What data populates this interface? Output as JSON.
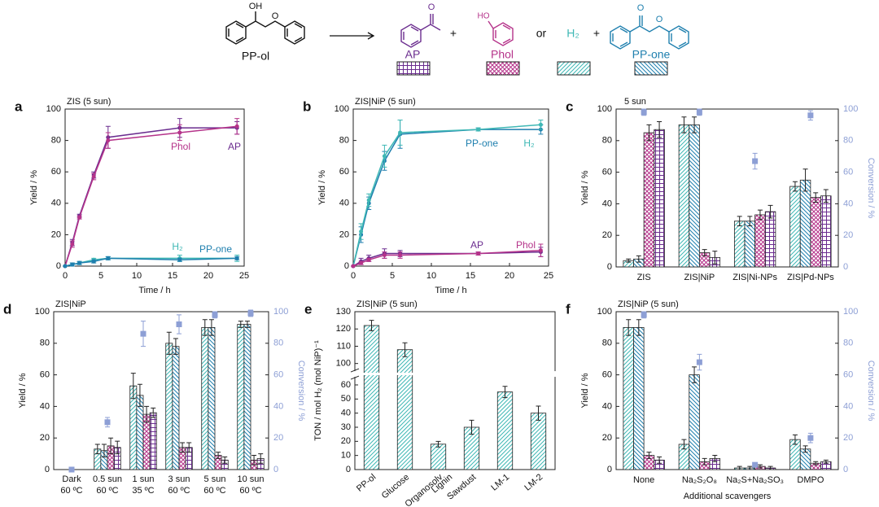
{
  "scheme": {
    "reactant": {
      "label": "PP-ol",
      "atoms": [
        "OH",
        "O"
      ]
    },
    "operators": [
      "+",
      "or",
      "+"
    ],
    "products": [
      {
        "label": "AP",
        "atoms": [
          "O"
        ],
        "color": "#6b2d8f",
        "pattern": "grid"
      },
      {
        "label": "Phol",
        "atoms": [
          "HO"
        ],
        "color": "#b5338a",
        "pattern": "crosshatch"
      },
      {
        "label": "H₂",
        "atoms": [],
        "color": "#3fb8b5",
        "pattern": "diag"
      },
      {
        "label": "PP-one",
        "atoms": [
          "O",
          "O"
        ],
        "color": "#1e7fae",
        "pattern": "antidiag"
      }
    ]
  },
  "chart_data": [
    {
      "type": "line",
      "label": "a",
      "title": "ZIS (5 sun)",
      "xlabel": "Time / h",
      "ylabel": "Yield / %",
      "x": [
        0,
        1,
        2,
        4,
        6,
        16,
        24
      ],
      "xlim": [
        0,
        25
      ],
      "xticks": [
        0,
        5,
        10,
        15,
        20,
        25
      ],
      "ylim": [
        0,
        100
      ],
      "yticks": [
        0,
        20,
        40,
        60,
        80,
        100
      ],
      "series": [
        {
          "name": "AP",
          "color": "#6b2d8f",
          "values": [
            0,
            15,
            32,
            58,
            82,
            88,
            88
          ],
          "errors": [
            0,
            2,
            1,
            2,
            7,
            6,
            4
          ]
        },
        {
          "name": "Phol",
          "color": "#b5338a",
          "values": [
            0,
            14,
            31,
            57,
            80,
            85,
            89
          ],
          "errors": [
            0,
            2,
            1,
            2,
            5,
            5,
            5
          ]
        },
        {
          "name": "H₂",
          "color": "#3fb8b5",
          "values": [
            0,
            1,
            2,
            4,
            5,
            5,
            5
          ],
          "errors": [
            0,
            1,
            1,
            1,
            1,
            2,
            2
          ]
        },
        {
          "name": "PP-one",
          "color": "#1e7fae",
          "values": [
            0,
            1,
            2,
            3,
            5,
            4,
            5
          ],
          "errors": [
            0,
            1,
            1,
            1,
            1,
            1,
            1
          ]
        }
      ]
    },
    {
      "type": "line",
      "label": "b",
      "title": "ZIS|NiP (5 sun)",
      "xlabel": "Time / h",
      "ylabel": "Yield / %",
      "x": [
        0,
        1,
        2,
        4,
        6,
        16,
        24
      ],
      "xlim": [
        0,
        25
      ],
      "xticks": [
        0,
        5,
        10,
        15,
        20,
        25
      ],
      "ylim": [
        0,
        100
      ],
      "yticks": [
        0,
        20,
        40,
        60,
        80,
        100
      ],
      "series": [
        {
          "name": "PP-one",
          "color": "#1e7fae",
          "values": [
            0,
            20,
            40,
            67,
            84,
            87,
            87
          ],
          "errors": [
            0,
            5,
            4,
            6,
            9,
            1,
            3
          ]
        },
        {
          "name": "H₂",
          "color": "#3fb8b5",
          "values": [
            0,
            22,
            42,
            70,
            85,
            87,
            90
          ],
          "errors": [
            0,
            5,
            4,
            7,
            8,
            1,
            3
          ]
        },
        {
          "name": "AP",
          "color": "#6b2d8f",
          "values": [
            0,
            3,
            5,
            8,
            8,
            8,
            9
          ],
          "errors": [
            0,
            2,
            2,
            3,
            2,
            1,
            3
          ]
        },
        {
          "name": "Phol",
          "color": "#b5338a",
          "values": [
            0,
            2,
            4,
            7,
            7,
            8,
            10
          ],
          "errors": [
            0,
            1,
            1,
            2,
            2,
            1,
            4
          ]
        }
      ]
    },
    {
      "type": "bar",
      "label": "c",
      "title": "5 sun",
      "ylabel": "Yield / %",
      "y2label": "Conversion / %",
      "categories": [
        "ZIS",
        "ZIS|NiP",
        "ZIS|Ni-NPs",
        "ZIS|Pd-NPs"
      ],
      "ylim": [
        0,
        100
      ],
      "yticks": [
        0,
        20,
        40,
        60,
        80,
        100
      ],
      "y2lim": [
        0,
        100
      ],
      "y2ticks": [
        0,
        20,
        40,
        60,
        80,
        100
      ],
      "series": [
        {
          "color": "#3fb8b5",
          "pattern": "diag",
          "values": [
            4,
            90,
            29,
            51
          ],
          "errors": [
            1,
            5,
            3,
            3
          ]
        },
        {
          "color": "#1e7fae",
          "pattern": "antidiag",
          "values": [
            5,
            90,
            29,
            55
          ],
          "errors": [
            2,
            5,
            3,
            7
          ]
        },
        {
          "color": "#b5338a",
          "pattern": "crosshatch",
          "values": [
            85,
            9,
            33,
            44
          ],
          "errors": [
            5,
            2,
            3,
            3
          ]
        },
        {
          "color": "#6b2d8f",
          "pattern": "grid",
          "values": [
            87,
            6,
            35,
            45
          ],
          "errors": [
            5,
            4,
            4,
            4
          ]
        },
        {
          "color": "#8d9fd5",
          "axis": "y2",
          "values": [
            98,
            98,
            67,
            96
          ],
          "errors": [
            2,
            2,
            5,
            3
          ]
        }
      ]
    },
    {
      "type": "bar",
      "label": "d",
      "title": "ZIS|NiP",
      "ylabel": "Yield / %",
      "y2label": "Conversion / %",
      "categories": [
        [
          "Dark",
          "60 ºC"
        ],
        [
          "0.5 sun",
          "60 ºC"
        ],
        [
          "1 sun",
          "35 ºC"
        ],
        [
          "3 sun",
          "60 ºC"
        ],
        [
          "5 sun",
          "60 ºC"
        ],
        [
          "10 sun",
          "60 ºC"
        ]
      ],
      "ylim": [
        0,
        100
      ],
      "yticks": [
        0,
        20,
        40,
        60,
        80,
        100
      ],
      "y2lim": [
        0,
        100
      ],
      "y2ticks": [
        0,
        20,
        40,
        60,
        80,
        100
      ],
      "series": [
        {
          "color": "#3fb8b5",
          "pattern": "diag",
          "values": [
            0,
            13,
            53,
            80,
            90,
            92
          ],
          "errors": [
            0,
            3,
            8,
            7,
            5,
            2
          ]
        },
        {
          "color": "#1e7fae",
          "pattern": "antidiag",
          "values": [
            0,
            12,
            47,
            78,
            90,
            92
          ],
          "errors": [
            0,
            4,
            7,
            5,
            5,
            2
          ]
        },
        {
          "color": "#b5338a",
          "pattern": "crosshatch",
          "values": [
            0,
            15,
            35,
            14,
            9,
            6
          ],
          "errors": [
            0,
            5,
            5,
            3,
            2,
            3
          ]
        },
        {
          "color": "#6b2d8f",
          "pattern": "grid",
          "values": [
            0,
            14,
            36,
            14,
            6,
            7
          ],
          "errors": [
            0,
            4,
            3,
            3,
            2,
            3
          ]
        },
        {
          "color": "#8d9fd5",
          "axis": "y2",
          "values": [
            0,
            30,
            86,
            92,
            98,
            99
          ],
          "errors": [
            1,
            3,
            8,
            6,
            2,
            2
          ]
        }
      ]
    },
    {
      "type": "bar",
      "label": "e",
      "title": "ZIS|NiP (5 sun)",
      "ylabel": "TON / mol H₂ (mol NiP)⁻¹",
      "categories": [
        [
          "PP-ol"
        ],
        [
          "Glucose"
        ],
        [
          "Organosolv",
          "Lignin"
        ],
        [
          "Sawdust"
        ],
        [
          "LM-1"
        ],
        [
          "LM-2"
        ]
      ],
      "ylim": [
        [
          0,
          64
        ],
        [
          97,
          130
        ]
      ],
      "yticks": [
        0,
        10,
        20,
        30,
        40,
        50,
        60,
        100,
        110,
        120,
        130
      ],
      "series": [
        {
          "color": "#3fb8b5",
          "pattern": "diag",
          "values": [
            122,
            108,
            18,
            30,
            55,
            40
          ],
          "errors": [
            3,
            4,
            2,
            5,
            4,
            5
          ]
        }
      ]
    },
    {
      "type": "bar",
      "label": "f",
      "title": "ZIS|NiP (5 sun)",
      "xlabel": "Additional scavengers",
      "ylabel": "Yield / %",
      "y2label": "Conversion / %",
      "categories": [
        "None",
        "Na₂S₂O₈",
        "Na₂S+Na₂SO₃",
        "DMPO"
      ],
      "ylim": [
        0,
        100
      ],
      "yticks": [
        0,
        20,
        40,
        60,
        80,
        100
      ],
      "y2lim": [
        0,
        100
      ],
      "y2ticks": [
        0,
        20,
        40,
        60,
        80,
        100
      ],
      "series": [
        {
          "color": "#3fb8b5",
          "pattern": "diag",
          "values": [
            90,
            16,
            1,
            19
          ],
          "errors": [
            5,
            3,
            1,
            3
          ]
        },
        {
          "color": "#1e7fae",
          "pattern": "antidiag",
          "values": [
            90,
            60,
            1,
            13
          ],
          "errors": [
            5,
            5,
            1,
            2
          ]
        },
        {
          "color": "#b5338a",
          "pattern": "crosshatch",
          "values": [
            9,
            5,
            2,
            4
          ],
          "errors": [
            2,
            2,
            1,
            1
          ]
        },
        {
          "color": "#6b2d8f",
          "pattern": "grid",
          "values": [
            6,
            7,
            1,
            5
          ],
          "errors": [
            2,
            2,
            1,
            1
          ]
        },
        {
          "color": "#8d9fd5",
          "axis": "y2",
          "values": [
            98,
            68,
            3,
            20
          ],
          "errors": [
            2,
            5,
            1,
            3
          ]
        }
      ]
    }
  ]
}
